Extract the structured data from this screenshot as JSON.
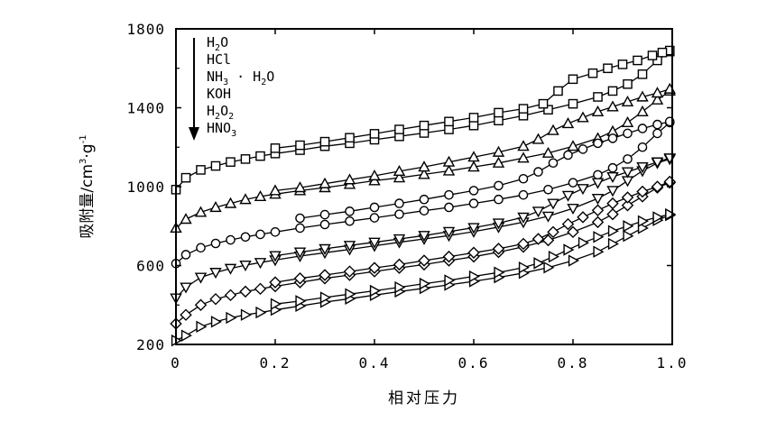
{
  "chart_data": {
    "type": "line",
    "xlabel": "相对压力",
    "ylabel_parts": [
      "吸附量/cm",
      "3",
      "·g",
      "-1"
    ],
    "xlim": [
      0,
      1.0
    ],
    "ylim": [
      200,
      1800
    ],
    "xticks": [
      0,
      0.2,
      0.4,
      0.6,
      0.8,
      1.0
    ],
    "xtick_labels": [
      "0",
      "0.2",
      "0.4",
      "0.6",
      "0.8",
      "1.0"
    ],
    "yticks": [
      200,
      600,
      1000,
      1400,
      1800
    ],
    "ytick_labels": [
      "200",
      "600",
      "1000",
      "1400",
      "1800"
    ],
    "grid": false,
    "legend_position": "top-left",
    "legend_order_note": "arrow",
    "series": [
      {
        "name": "H2O",
        "label_parts": [
          [
            "H",
            "n"
          ],
          [
            "2",
            "sub"
          ],
          [
            "O",
            "n"
          ]
        ],
        "marker": "square",
        "adsorption": [
          [
            0.0,
            985
          ],
          [
            0.02,
            1045
          ],
          [
            0.05,
            1085
          ],
          [
            0.08,
            1105
          ],
          [
            0.11,
            1125
          ],
          [
            0.14,
            1140
          ],
          [
            0.17,
            1155
          ],
          [
            0.2,
            1168
          ],
          [
            0.25,
            1185
          ],
          [
            0.3,
            1205
          ],
          [
            0.35,
            1220
          ],
          [
            0.4,
            1238
          ],
          [
            0.45,
            1255
          ],
          [
            0.5,
            1272
          ],
          [
            0.55,
            1290
          ],
          [
            0.6,
            1310
          ],
          [
            0.65,
            1335
          ],
          [
            0.7,
            1360
          ],
          [
            0.75,
            1390
          ],
          [
            0.8,
            1420
          ],
          [
            0.85,
            1455
          ],
          [
            0.88,
            1485
          ],
          [
            0.91,
            1520
          ],
          [
            0.94,
            1570
          ],
          [
            0.97,
            1640
          ],
          [
            0.995,
            1685
          ]
        ],
        "desorption": [
          [
            0.995,
            1690
          ],
          [
            0.98,
            1680
          ],
          [
            0.96,
            1665
          ],
          [
            0.93,
            1640
          ],
          [
            0.9,
            1620
          ],
          [
            0.87,
            1600
          ],
          [
            0.84,
            1575
          ],
          [
            0.8,
            1545
          ],
          [
            0.77,
            1485
          ],
          [
            0.74,
            1420
          ],
          [
            0.7,
            1395
          ],
          [
            0.65,
            1375
          ],
          [
            0.6,
            1350
          ],
          [
            0.55,
            1330
          ],
          [
            0.5,
            1310
          ],
          [
            0.45,
            1290
          ],
          [
            0.4,
            1268
          ],
          [
            0.35,
            1248
          ],
          [
            0.3,
            1228
          ],
          [
            0.25,
            1210
          ],
          [
            0.2,
            1195
          ]
        ]
      },
      {
        "name": "HCl",
        "label_parts": [
          [
            "HCl",
            "n"
          ]
        ],
        "marker": "triangle-up",
        "adsorption": [
          [
            0.0,
            790
          ],
          [
            0.02,
            835
          ],
          [
            0.05,
            870
          ],
          [
            0.08,
            895
          ],
          [
            0.11,
            915
          ],
          [
            0.14,
            935
          ],
          [
            0.17,
            950
          ],
          [
            0.2,
            962
          ],
          [
            0.25,
            980
          ],
          [
            0.3,
            995
          ],
          [
            0.35,
            1012
          ],
          [
            0.4,
            1030
          ],
          [
            0.45,
            1045
          ],
          [
            0.5,
            1062
          ],
          [
            0.55,
            1080
          ],
          [
            0.6,
            1100
          ],
          [
            0.65,
            1120
          ],
          [
            0.7,
            1145
          ],
          [
            0.75,
            1170
          ],
          [
            0.8,
            1205
          ],
          [
            0.85,
            1245
          ],
          [
            0.88,
            1280
          ],
          [
            0.91,
            1325
          ],
          [
            0.94,
            1380
          ],
          [
            0.97,
            1440
          ],
          [
            0.995,
            1485
          ]
        ],
        "desorption": [
          [
            0.995,
            1495
          ],
          [
            0.97,
            1475
          ],
          [
            0.94,
            1455
          ],
          [
            0.91,
            1430
          ],
          [
            0.88,
            1405
          ],
          [
            0.85,
            1380
          ],
          [
            0.82,
            1350
          ],
          [
            0.79,
            1320
          ],
          [
            0.76,
            1285
          ],
          [
            0.73,
            1240
          ],
          [
            0.7,
            1205
          ],
          [
            0.65,
            1175
          ],
          [
            0.6,
            1150
          ],
          [
            0.55,
            1125
          ],
          [
            0.5,
            1100
          ],
          [
            0.45,
            1078
          ],
          [
            0.4,
            1055
          ],
          [
            0.35,
            1035
          ],
          [
            0.3,
            1015
          ],
          [
            0.25,
            995
          ],
          [
            0.2,
            980
          ]
        ]
      },
      {
        "name": "NH3·H2O",
        "label_parts": [
          [
            "NH",
            "n"
          ],
          [
            "3",
            "sub"
          ],
          [
            " · H",
            "n"
          ],
          [
            "2",
            "sub"
          ],
          [
            "O",
            "n"
          ]
        ],
        "marker": "circle",
        "adsorption": [
          [
            0.0,
            610
          ],
          [
            0.02,
            655
          ],
          [
            0.05,
            690
          ],
          [
            0.08,
            712
          ],
          [
            0.11,
            730
          ],
          [
            0.14,
            745
          ],
          [
            0.17,
            758
          ],
          [
            0.2,
            770
          ],
          [
            0.25,
            790
          ],
          [
            0.3,
            808
          ],
          [
            0.35,
            825
          ],
          [
            0.4,
            842
          ],
          [
            0.45,
            860
          ],
          [
            0.5,
            878
          ],
          [
            0.55,
            895
          ],
          [
            0.6,
            915
          ],
          [
            0.65,
            935
          ],
          [
            0.7,
            958
          ],
          [
            0.75,
            985
          ],
          [
            0.8,
            1020
          ],
          [
            0.85,
            1060
          ],
          [
            0.88,
            1095
          ],
          [
            0.91,
            1140
          ],
          [
            0.94,
            1200
          ],
          [
            0.97,
            1270
          ],
          [
            0.995,
            1325
          ]
        ],
        "desorption": [
          [
            0.995,
            1330
          ],
          [
            0.97,
            1315
          ],
          [
            0.94,
            1295
          ],
          [
            0.91,
            1270
          ],
          [
            0.88,
            1245
          ],
          [
            0.85,
            1220
          ],
          [
            0.82,
            1190
          ],
          [
            0.79,
            1160
          ],
          [
            0.76,
            1120
          ],
          [
            0.73,
            1075
          ],
          [
            0.7,
            1040
          ],
          [
            0.65,
            1005
          ],
          [
            0.6,
            980
          ],
          [
            0.55,
            958
          ],
          [
            0.5,
            935
          ],
          [
            0.45,
            915
          ],
          [
            0.4,
            895
          ],
          [
            0.35,
            875
          ],
          [
            0.3,
            858
          ],
          [
            0.25,
            840
          ]
        ]
      },
      {
        "name": "KOH",
        "label_parts": [
          [
            "KOH",
            "n"
          ]
        ],
        "marker": "triangle-down",
        "adsorption": [
          [
            0.0,
            435
          ],
          [
            0.02,
            490
          ],
          [
            0.05,
            540
          ],
          [
            0.08,
            565
          ],
          [
            0.11,
            585
          ],
          [
            0.14,
            602
          ],
          [
            0.17,
            615
          ],
          [
            0.2,
            628
          ],
          [
            0.25,
            648
          ],
          [
            0.3,
            665
          ],
          [
            0.35,
            682
          ],
          [
            0.4,
            700
          ],
          [
            0.45,
            718
          ],
          [
            0.5,
            735
          ],
          [
            0.55,
            752
          ],
          [
            0.6,
            772
          ],
          [
            0.65,
            795
          ],
          [
            0.7,
            820
          ],
          [
            0.75,
            850
          ],
          [
            0.8,
            890
          ],
          [
            0.85,
            940
          ],
          [
            0.88,
            980
          ],
          [
            0.91,
            1030
          ],
          [
            0.94,
            1080
          ],
          [
            0.97,
            1120
          ],
          [
            0.995,
            1140
          ]
        ],
        "desorption": [
          [
            0.995,
            1145
          ],
          [
            0.97,
            1125
          ],
          [
            0.94,
            1100
          ],
          [
            0.91,
            1075
          ],
          [
            0.88,
            1050
          ],
          [
            0.85,
            1020
          ],
          [
            0.82,
            990
          ],
          [
            0.79,
            955
          ],
          [
            0.76,
            915
          ],
          [
            0.73,
            875
          ],
          [
            0.7,
            845
          ],
          [
            0.65,
            815
          ],
          [
            0.6,
            792
          ],
          [
            0.55,
            772
          ],
          [
            0.5,
            752
          ],
          [
            0.45,
            735
          ],
          [
            0.4,
            718
          ],
          [
            0.35,
            702
          ],
          [
            0.3,
            685
          ],
          [
            0.25,
            668
          ],
          [
            0.2,
            650
          ]
        ]
      },
      {
        "name": "H2O2",
        "label_parts": [
          [
            "H",
            "n"
          ],
          [
            "2",
            "sub"
          ],
          [
            "O",
            "n"
          ],
          [
            "2",
            "sub"
          ]
        ],
        "marker": "diamond",
        "adsorption": [
          [
            0.0,
            305
          ],
          [
            0.02,
            350
          ],
          [
            0.05,
            400
          ],
          [
            0.08,
            430
          ],
          [
            0.11,
            450
          ],
          [
            0.14,
            468
          ],
          [
            0.17,
            482
          ],
          [
            0.2,
            495
          ],
          [
            0.25,
            515
          ],
          [
            0.3,
            535
          ],
          [
            0.35,
            552
          ],
          [
            0.4,
            570
          ],
          [
            0.45,
            588
          ],
          [
            0.5,
            605
          ],
          [
            0.55,
            625
          ],
          [
            0.6,
            645
          ],
          [
            0.65,
            668
          ],
          [
            0.7,
            695
          ],
          [
            0.75,
            728
          ],
          [
            0.8,
            770
          ],
          [
            0.85,
            820
          ],
          [
            0.88,
            860
          ],
          [
            0.91,
            905
          ],
          [
            0.94,
            950
          ],
          [
            0.97,
            995
          ],
          [
            0.995,
            1020
          ]
        ],
        "desorption": [
          [
            0.995,
            1025
          ],
          [
            0.97,
            1000
          ],
          [
            0.94,
            975
          ],
          [
            0.91,
            945
          ],
          [
            0.88,
            915
          ],
          [
            0.85,
            880
          ],
          [
            0.82,
            845
          ],
          [
            0.79,
            810
          ],
          [
            0.76,
            770
          ],
          [
            0.73,
            735
          ],
          [
            0.7,
            710
          ],
          [
            0.65,
            685
          ],
          [
            0.6,
            665
          ],
          [
            0.55,
            645
          ],
          [
            0.5,
            625
          ],
          [
            0.45,
            605
          ],
          [
            0.4,
            588
          ],
          [
            0.35,
            570
          ],
          [
            0.3,
            552
          ],
          [
            0.25,
            535
          ],
          [
            0.2,
            515
          ]
        ]
      },
      {
        "name": "HNO3",
        "label_parts": [
          [
            "HNO",
            "n"
          ],
          [
            "3",
            "sub"
          ]
        ],
        "marker": "triangle-right",
        "adsorption": [
          [
            0.0,
            220
          ],
          [
            0.02,
            245
          ],
          [
            0.05,
            290
          ],
          [
            0.08,
            315
          ],
          [
            0.11,
            335
          ],
          [
            0.14,
            350
          ],
          [
            0.17,
            362
          ],
          [
            0.2,
            375
          ],
          [
            0.25,
            395
          ],
          [
            0.3,
            415
          ],
          [
            0.35,
            432
          ],
          [
            0.4,
            450
          ],
          [
            0.45,
            468
          ],
          [
            0.5,
            485
          ],
          [
            0.55,
            502
          ],
          [
            0.6,
            520
          ],
          [
            0.65,
            540
          ],
          [
            0.7,
            562
          ],
          [
            0.75,
            590
          ],
          [
            0.8,
            625
          ],
          [
            0.85,
            670
          ],
          [
            0.88,
            710
          ],
          [
            0.91,
            750
          ],
          [
            0.94,
            790
          ],
          [
            0.97,
            830
          ],
          [
            0.995,
            855
          ]
        ],
        "desorption": [
          [
            0.995,
            860
          ],
          [
            0.97,
            845
          ],
          [
            0.94,
            825
          ],
          [
            0.91,
            800
          ],
          [
            0.88,
            775
          ],
          [
            0.85,
            745
          ],
          [
            0.82,
            715
          ],
          [
            0.79,
            680
          ],
          [
            0.76,
            645
          ],
          [
            0.73,
            612
          ],
          [
            0.7,
            590
          ],
          [
            0.65,
            565
          ],
          [
            0.6,
            545
          ],
          [
            0.55,
            525
          ],
          [
            0.5,
            508
          ],
          [
            0.45,
            490
          ],
          [
            0.4,
            472
          ],
          [
            0.35,
            455
          ],
          [
            0.3,
            438
          ],
          [
            0.25,
            420
          ],
          [
            0.2,
            405
          ]
        ]
      }
    ]
  }
}
